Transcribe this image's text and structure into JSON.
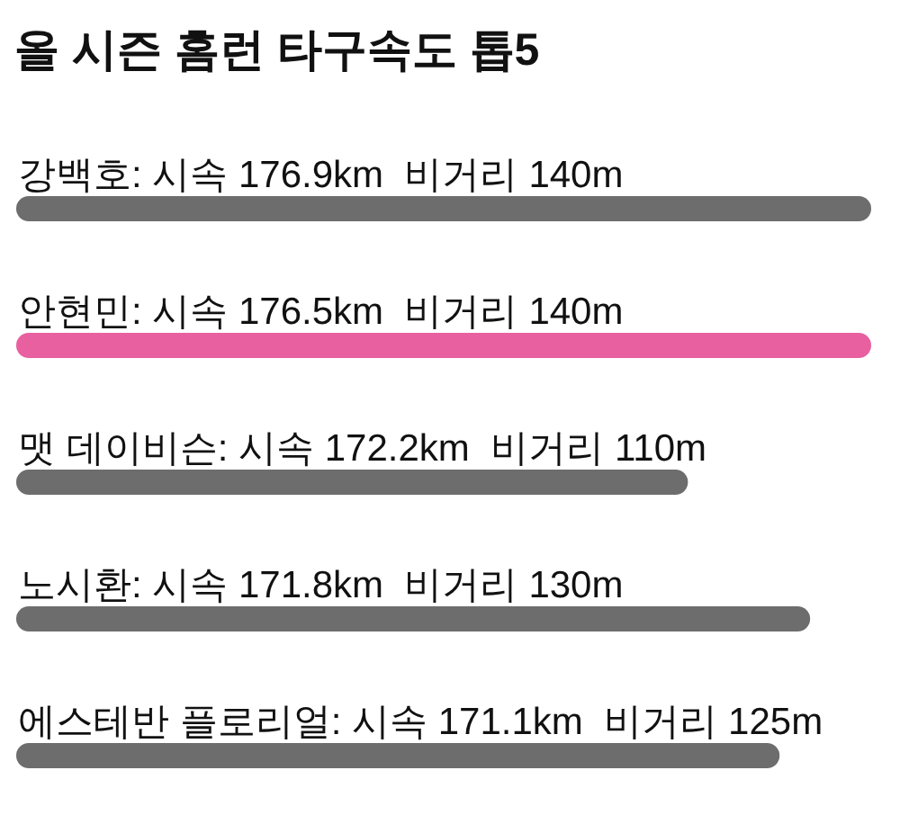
{
  "chart_data": {
    "type": "bar",
    "orientation": "horizontal",
    "title": "올 시즌 홈런 타구속도 톱5",
    "categories": [
      "강백호: 시속 176.9km  비거리",
      "안현민: 시속 176.5km  비거리",
      "맷 데이비슨: 시속 172.2km  비거리",
      "노시환: 시속 171.8km  비거리",
      "에스테반 플로리얼: 시속 171.1km  비거리"
    ],
    "values": [
      140,
      140,
      110,
      130,
      125
    ],
    "value_labels": [
      "140m",
      "140m",
      "110m",
      "130m",
      "125m"
    ],
    "colors": [
      "#6d6d6d",
      "#e8609f",
      "#6d6d6d",
      "#6d6d6d",
      "#6d6d6d"
    ]
  }
}
